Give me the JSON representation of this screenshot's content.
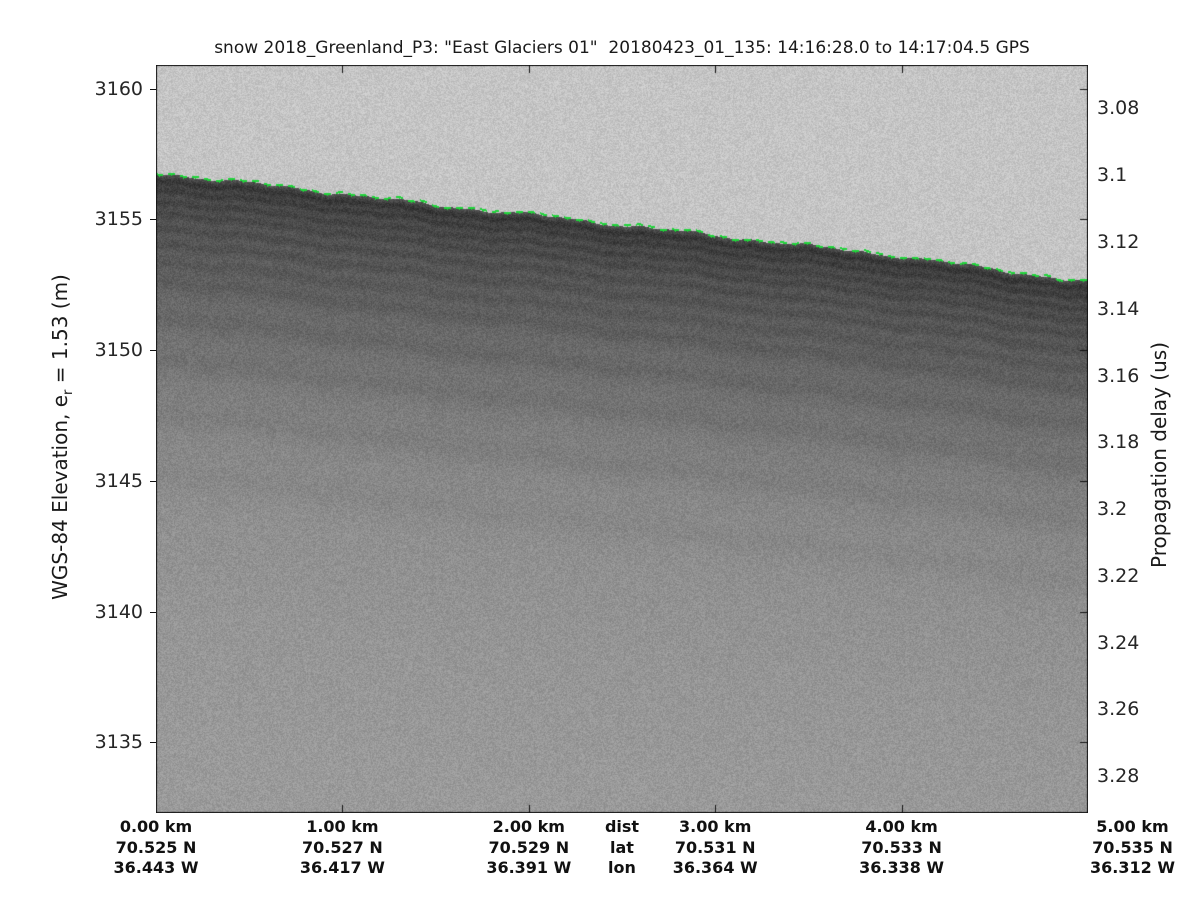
{
  "title": "snow 2018_Greenland_P3: \"East Glaciers 01\"  20180423_01_135: 14:16:28.0 to 14:17:04.5 GPS",
  "left_axis": {
    "label_prefix": "WGS-84 Elevation, e",
    "label_sub": "r",
    "label_suffix": " = 1.53 (m)",
    "ticks": [
      "3160",
      "3155",
      "3150",
      "3145",
      "3140",
      "3135"
    ],
    "tick_values": [
      3160,
      3155,
      3150,
      3145,
      3140,
      3135
    ]
  },
  "right_axis": {
    "label": "Propagation delay (us)",
    "ticks": [
      "3.08",
      "3.1",
      "3.12",
      "3.14",
      "3.16",
      "3.18",
      "3.2",
      "3.22",
      "3.24",
      "3.26",
      "3.28"
    ],
    "tick_values": [
      3.08,
      3.1,
      3.12,
      3.14,
      3.16,
      3.18,
      3.2,
      3.22,
      3.24,
      3.26,
      3.28
    ]
  },
  "bottom_axis": {
    "header": {
      "dist": "dist",
      "lat": "lat",
      "lon": "lon"
    },
    "columns": [
      {
        "km": 0,
        "dist": "0.00 km",
        "lat": "70.525 N",
        "lon": "36.443 W"
      },
      {
        "km": 1,
        "dist": "1.00 km",
        "lat": "70.527 N",
        "lon": "36.417 W"
      },
      {
        "km": 2,
        "dist": "2.00 km",
        "lat": "70.529 N",
        "lon": "36.391 W"
      },
      {
        "km": 3,
        "dist": "3.00 km",
        "lat": "70.531 N",
        "lon": "36.364 W"
      },
      {
        "km": 4,
        "dist": "4.00 km",
        "lat": "70.533 N",
        "lon": "36.338 W"
      },
      {
        "km": 5,
        "dist": "5.00 km",
        "lat": "70.535 N",
        "lon": "36.312 W"
      }
    ]
  },
  "chart_data": {
    "type": "heatmap",
    "description": "Airborne snow-radar echogram: grayscale backscatter versus along-track distance and WGS-84 elevation; bright green dashed line is the tracked air/snow surface; dark sub-parallel bands below the surface are internal snow layers fading with depth.",
    "x_range_km": [
      0,
      5
    ],
    "elevation_range_m": [
      3132.3,
      3160.9
    ],
    "delay_range_us": [
      3.067,
      3.291
    ],
    "surface_profile_km_elev": [
      [
        0.0,
        3156.8
      ],
      [
        0.5,
        3156.4
      ],
      [
        1.0,
        3156.0
      ],
      [
        1.5,
        3155.55
      ],
      [
        2.0,
        3155.2
      ],
      [
        2.5,
        3154.8
      ],
      [
        3.0,
        3154.4
      ],
      [
        3.5,
        3154.0
      ],
      [
        4.0,
        3153.6
      ],
      [
        4.5,
        3153.1
      ],
      [
        5.0,
        3152.6
      ]
    ],
    "internal_layers_depth_m": [
      0.25,
      0.62,
      1.05,
      1.5,
      2.05,
      2.65,
      3.35,
      4.1,
      5.5,
      7.1,
      9.2,
      11.5
    ],
    "colors": {
      "air": "#c5c5c5",
      "near_surface": "#555555",
      "deep": "#989898",
      "surface_line": "#21d43b",
      "axis": "#111111",
      "text": "#262626"
    }
  }
}
